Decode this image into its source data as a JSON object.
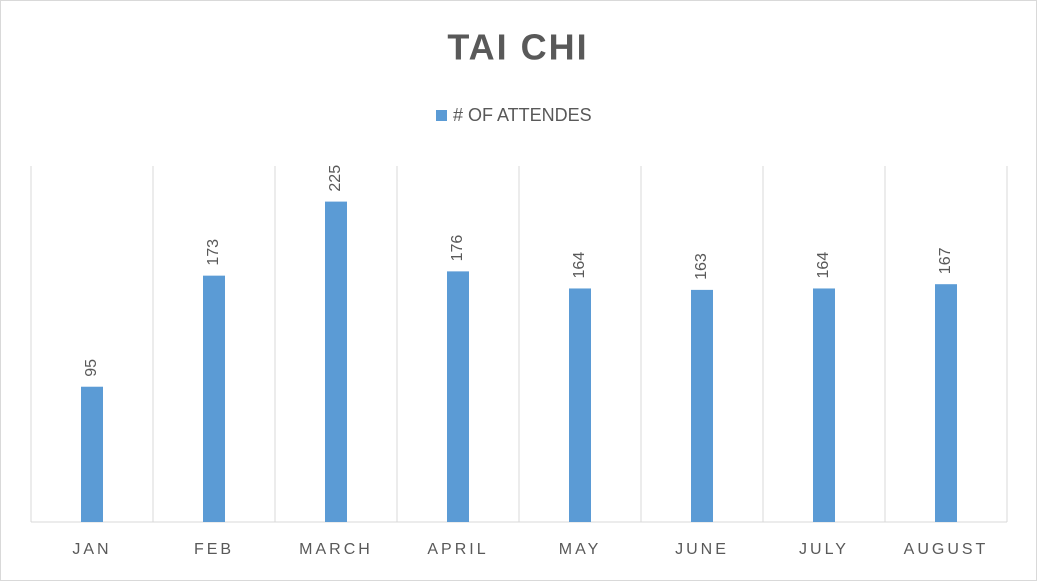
{
  "chart_data": {
    "type": "bar",
    "title": "TAI CHI",
    "legend": "# OF ATTENDES",
    "categories": [
      "JAN",
      "FEB",
      "MARCH",
      "APRIL",
      "MAY",
      "JUNE",
      "JULY",
      "AUGUST"
    ],
    "series": [
      {
        "name": "# OF ATTENDES",
        "color": "#5b9bd5",
        "values": [
          95,
          173,
          225,
          176,
          164,
          163,
          164,
          167
        ]
      }
    ],
    "ylim": [
      0,
      250
    ],
    "grid": true,
    "legend_position": "top"
  }
}
